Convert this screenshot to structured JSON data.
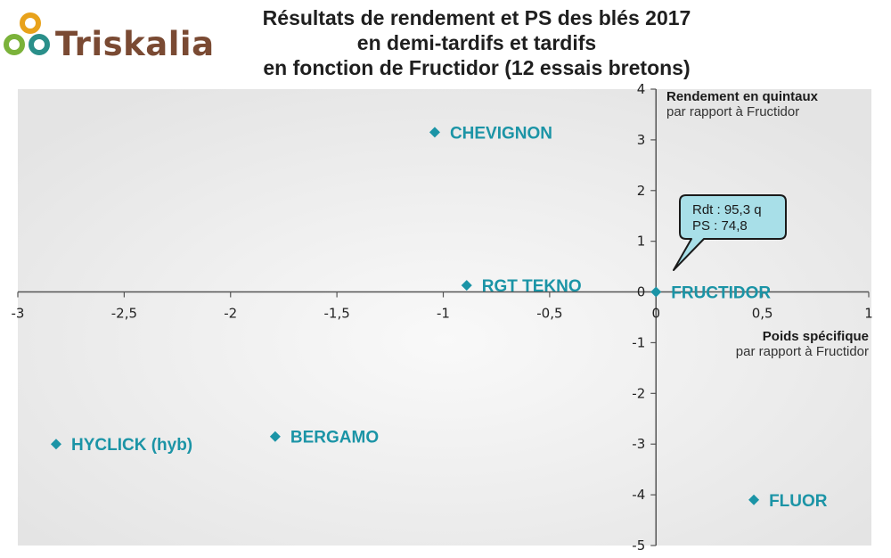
{
  "brand": {
    "name": "Triskalia"
  },
  "title": {
    "line1": "Résultats de rendement et PS des blés 2017",
    "line2": "en demi-tardifs et tardifs",
    "line3": "en fonction de Fructidor (12 essais bretons)"
  },
  "colors": {
    "points": "#1b94a6",
    "callout_fill": "#a8dfe8",
    "plot_bg": "#ececec"
  },
  "chart_data": {
    "type": "scatter",
    "title": "Résultats de rendement et PS des blés 2017 en demi-tardifs et tardifs en fonction de Fructidor (12 essais bretons)",
    "xlabel": "Poids spécifique",
    "xlabel_sub": "par rapport à Fructidor",
    "ylabel": "Rendement en quintaux",
    "ylabel_sub": "par rapport à Fructidor",
    "xlim": [
      -3,
      1
    ],
    "ylim": [
      -5,
      4
    ],
    "x_ticks": [
      {
        "value": -3,
        "label": "-3"
      },
      {
        "value": -2.5,
        "label": "-2,5"
      },
      {
        "value": -2,
        "label": "-2"
      },
      {
        "value": -1.5,
        "label": "-1,5"
      },
      {
        "value": -1,
        "label": "-1"
      },
      {
        "value": -0.5,
        "label": "-0,5"
      },
      {
        "value": 0,
        "label": "0"
      },
      {
        "value": 0.5,
        "label": "0,5"
      },
      {
        "value": 1,
        "label": "1"
      }
    ],
    "y_ticks": [
      {
        "value": 4,
        "label": "4"
      },
      {
        "value": 3,
        "label": "3"
      },
      {
        "value": 2,
        "label": "2"
      },
      {
        "value": 1,
        "label": "1"
      },
      {
        "value": 0,
        "label": "0"
      },
      {
        "value": -1,
        "label": "-1"
      },
      {
        "value": -2,
        "label": "-2"
      },
      {
        "value": -3,
        "label": "-3"
      },
      {
        "value": -4,
        "label": "-4"
      },
      {
        "value": -5,
        "label": "-5"
      }
    ],
    "points": [
      {
        "name": "CHEVIGNON",
        "x": -1.04,
        "y": 3.15
      },
      {
        "name": "RGT TEKNO",
        "x": -0.89,
        "y": 0.13
      },
      {
        "name": "FRUCTIDOR",
        "x": 0.0,
        "y": 0.0
      },
      {
        "name": "HYCLICK (hyb)",
        "x": -2.82,
        "y": -3.0
      },
      {
        "name": "BERGAMO",
        "x": -1.79,
        "y": -2.85
      },
      {
        "name": "FLUOR",
        "x": 0.46,
        "y": -4.1
      }
    ],
    "callout": {
      "target": "FRUCTIDOR",
      "line1": "Rdt : 95,3 q",
      "line2": "PS : 74,8"
    }
  }
}
